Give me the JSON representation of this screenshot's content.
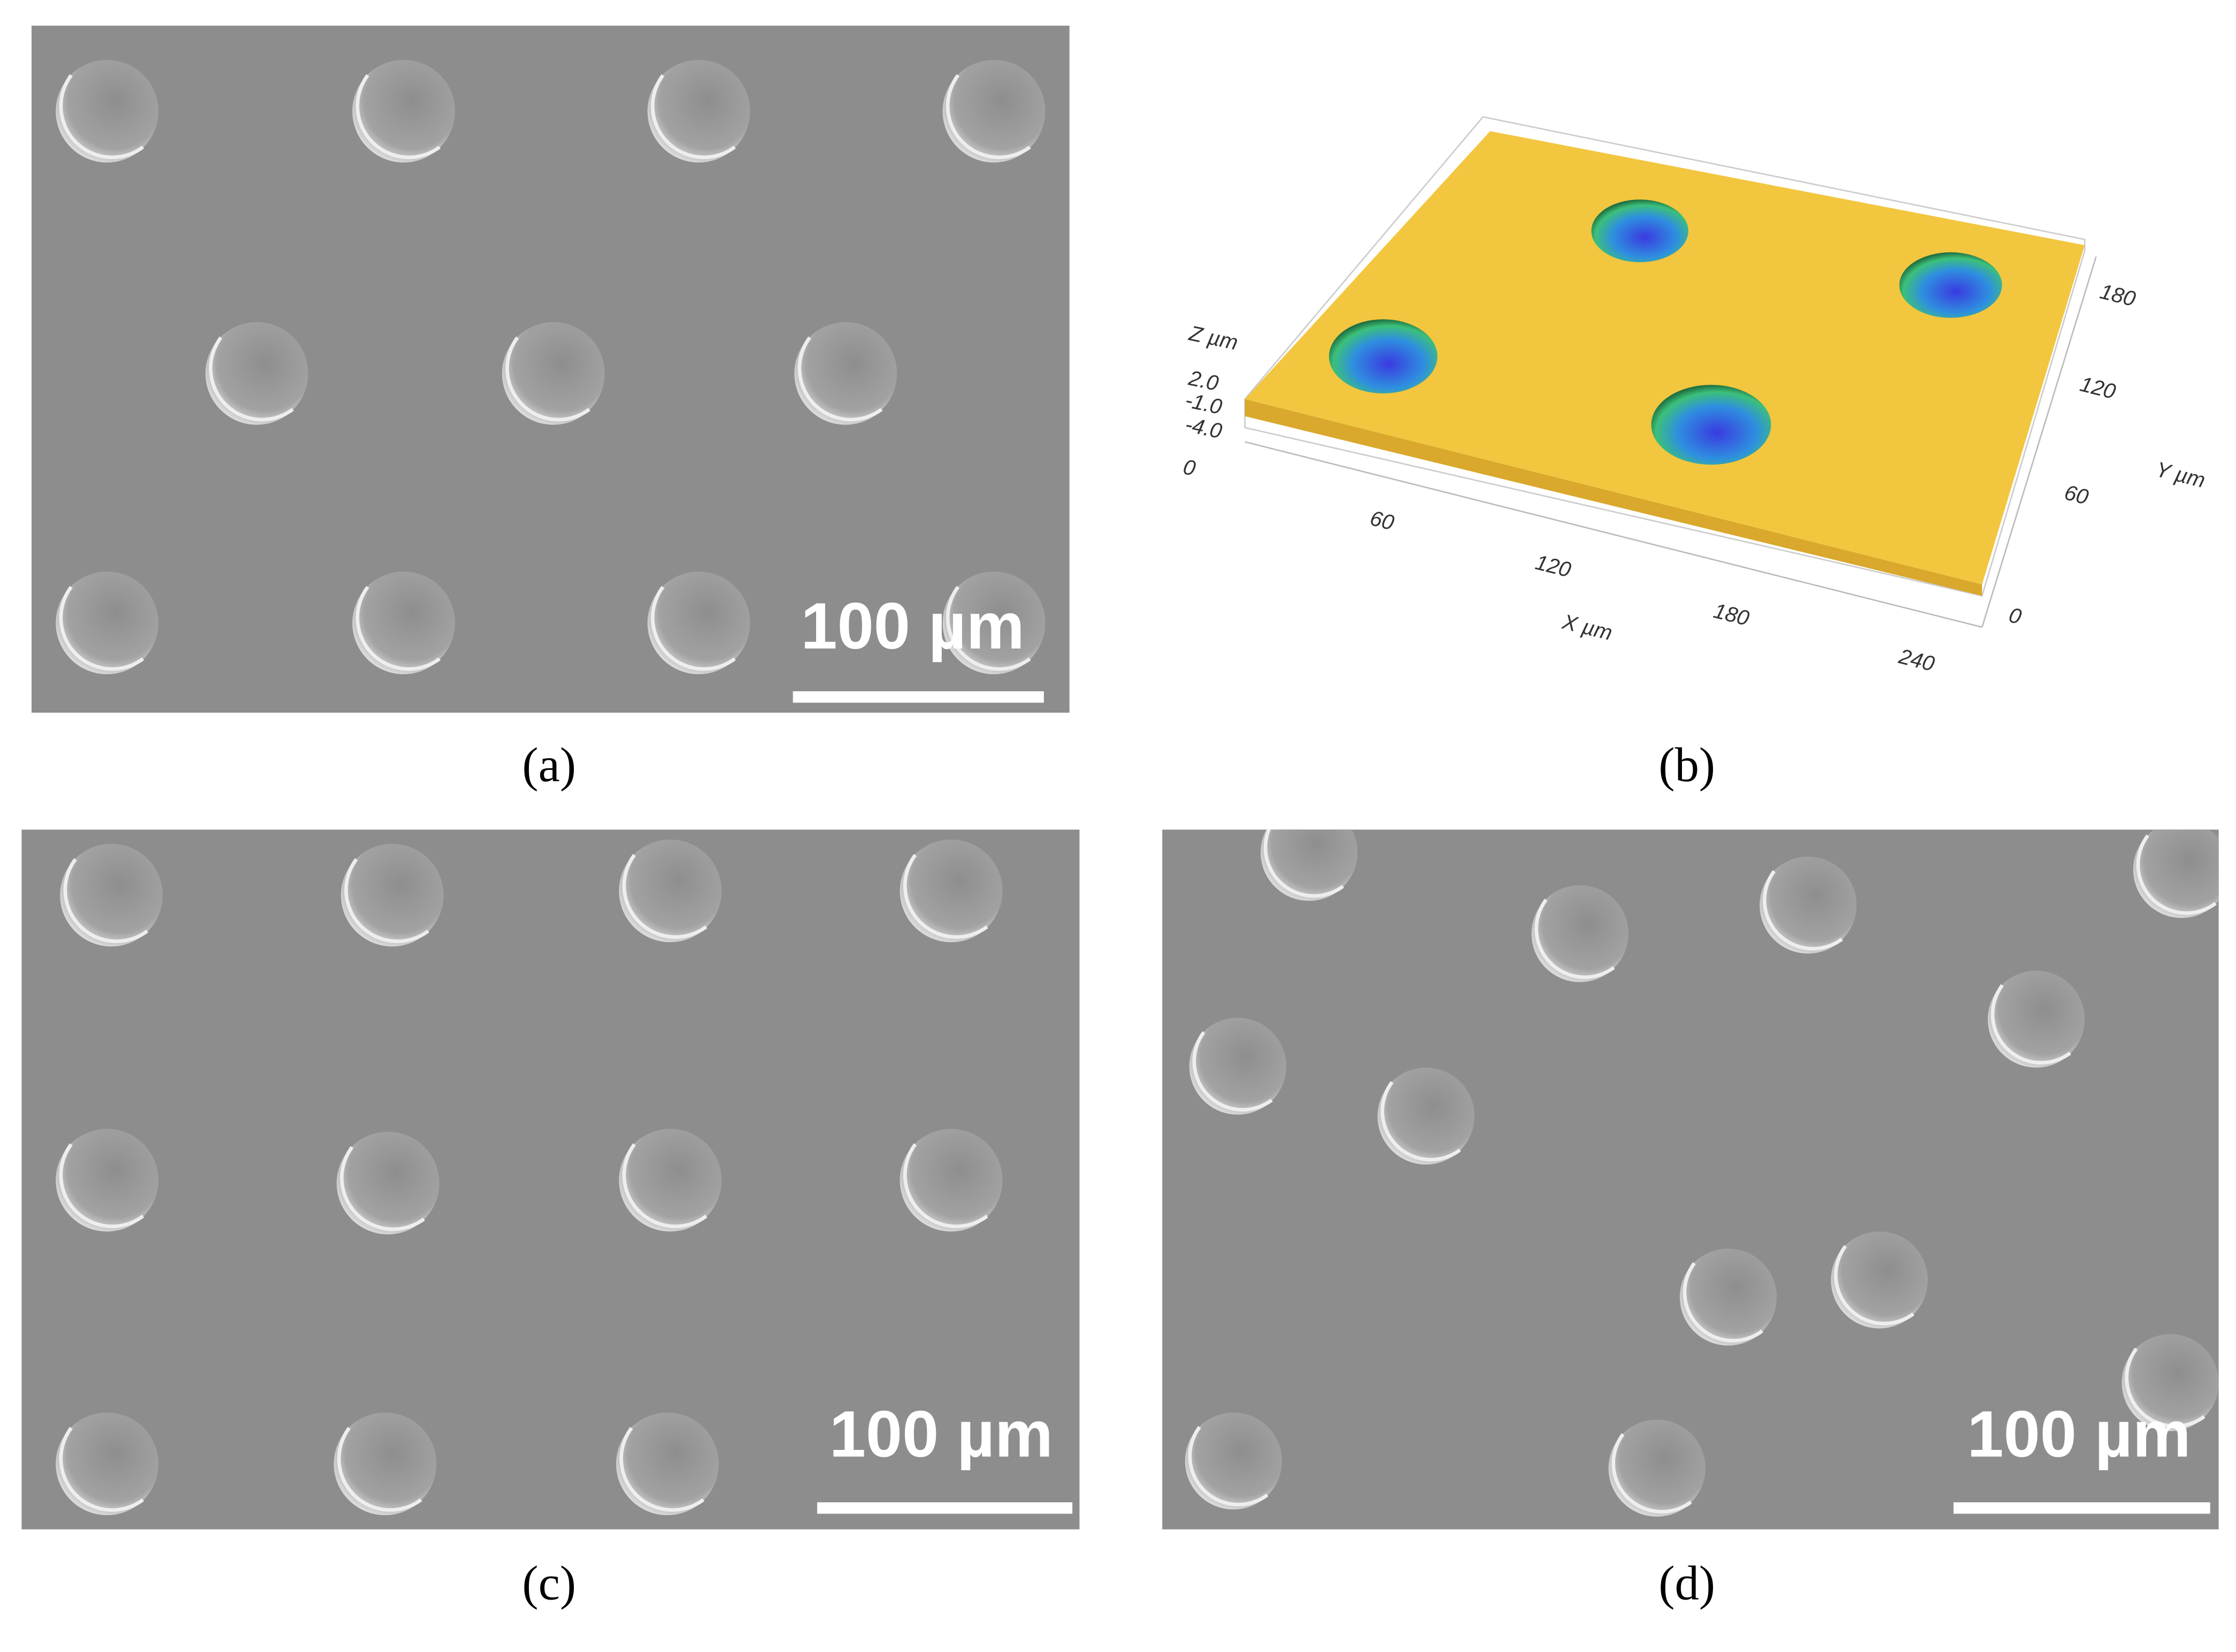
{
  "panels": [
    {
      "caption": "(a)",
      "scale_bar": "100 µm"
    },
    {
      "caption": "(b)",
      "z_axis": {
        "label": "Z µm",
        "ticks": [
          "2.0",
          "-1.0",
          "-4.0"
        ]
      },
      "origin": "0",
      "x_axis": {
        "label": "X µm",
        "ticks": [
          "60",
          "120",
          "180",
          "240"
        ]
      },
      "y_axis": {
        "label": "Y µm",
        "ticks": [
          "0",
          "60",
          "120",
          "180"
        ]
      }
    },
    {
      "caption": "(c)",
      "scale_bar": "100 µm"
    },
    {
      "caption": "(d)",
      "scale_bar": "100 µm"
    }
  ]
}
